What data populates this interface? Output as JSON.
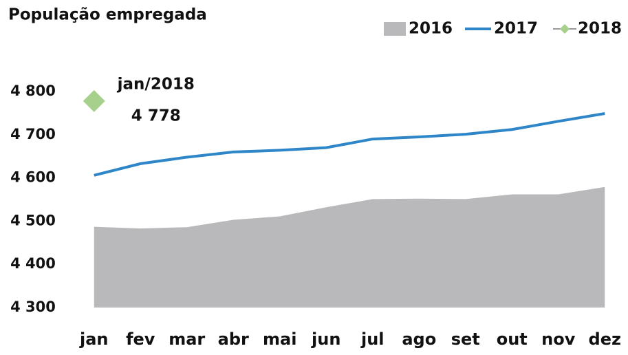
{
  "chart_data": {
    "type": "line",
    "title": "População empregada",
    "categories": [
      "jan",
      "fev",
      "mar",
      "abr",
      "mai",
      "jun",
      "jul",
      "ago",
      "set",
      "out",
      "nov",
      "dez"
    ],
    "series": [
      {
        "name": "2016",
        "color": "#b9b9bb",
        "style": "area",
        "values": [
          4487,
          4483,
          4486,
          4503,
          4511,
          4532,
          4551,
          4552,
          4551,
          4562,
          4562,
          4579
        ]
      },
      {
        "name": "2017",
        "color": "#2e86c8",
        "style": "line",
        "values": [
          4606,
          4633,
          4648,
          4660,
          4664,
          4670,
          4690,
          4695,
          4701,
          4712,
          4731,
          4749
        ]
      },
      {
        "name": "2018",
        "color": "#a8d08d",
        "style": "marker",
        "values": [
          4778,
          null,
          null,
          null,
          null,
          null,
          null,
          null,
          null,
          null,
          null,
          null
        ],
        "value_labels": [
          "4 778",
          null,
          null,
          null,
          null,
          null,
          null,
          null,
          null,
          null,
          null,
          null
        ]
      }
    ],
    "annotation": "jan/2018",
    "ylim": [
      4300,
      4800
    ],
    "yticks": [
      {
        "value": 4300,
        "label": "4 300"
      },
      {
        "value": 4400,
        "label": "4 400"
      },
      {
        "value": 4500,
        "label": "4 500"
      },
      {
        "value": 4600,
        "label": "4 600"
      },
      {
        "value": 4700,
        "label": "4 700"
      },
      {
        "value": 4800,
        "label": "4 800"
      }
    ],
    "legend": "top-right",
    "grid": false
  }
}
